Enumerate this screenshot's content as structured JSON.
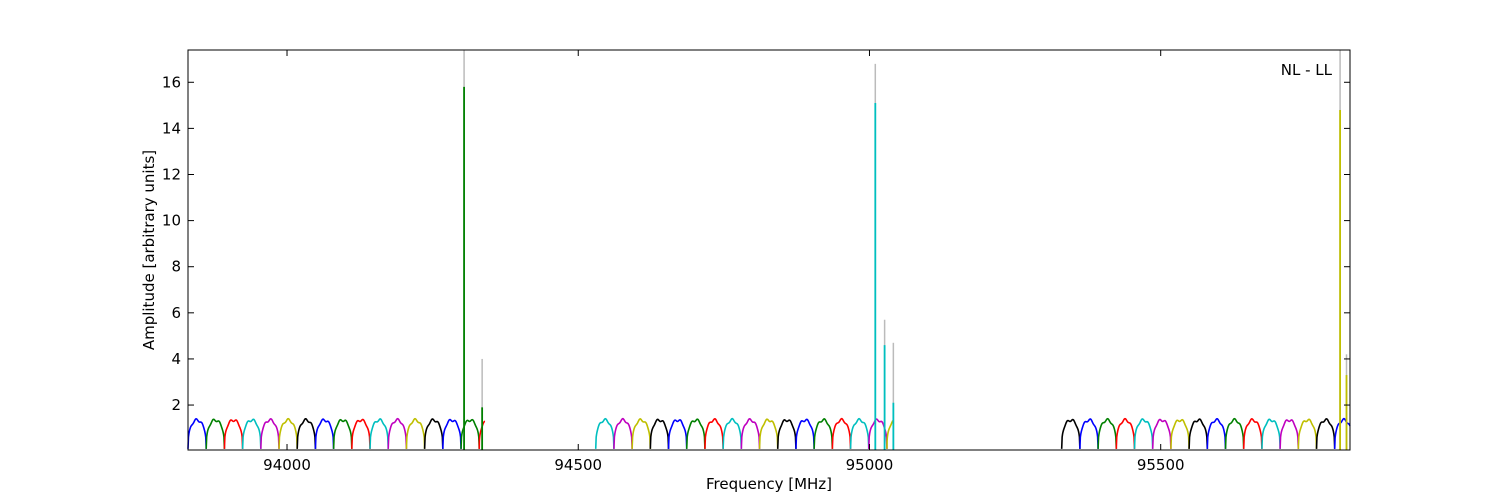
{
  "chart_data": {
    "type": "line",
    "title": "",
    "xlabel": "Frequency [MHz]",
    "ylabel": "Amplitude [arbitrary units]",
    "annotation": "NL - LL",
    "annotation_position": "top-right",
    "xlim": [
      93830,
      95825
    ],
    "ylim": [
      0.05,
      17.4
    ],
    "xticks": [
      94000,
      94500,
      95000,
      95500
    ],
    "yticks": [
      2,
      4,
      6,
      8,
      10,
      12,
      14,
      16
    ],
    "grid": false,
    "legend": "none",
    "colors": [
      "#0000ff",
      "#008000",
      "#ff0000",
      "#00bfbf",
      "#bf00bf",
      "#bfbf00",
      "#000000"
    ],
    "spike_color": "#bbbbbb",
    "baseline": {
      "subband_width_mhz": 31.25,
      "peak": 1.35,
      "edge_min": 0.1,
      "spans": [
        [
          93830,
          94340
        ],
        [
          94530,
          95040
        ],
        [
          95330,
          95825
        ]
      ]
    },
    "spikes": [
      {
        "x": 94304,
        "gray_peak": 17.4,
        "line_peak": 15.8,
        "color": "#008000"
      },
      {
        "x": 94335,
        "gray_peak": 4.0,
        "line_peak": 1.9,
        "color": "#008000"
      },
      {
        "x": 95010,
        "gray_peak": 16.8,
        "line_peak": 15.1,
        "color": "#00bfbf"
      },
      {
        "x": 95026,
        "gray_peak": 5.7,
        "line_peak": 4.6,
        "color": "#00bfbf"
      },
      {
        "x": 95041,
        "gray_peak": 4.7,
        "line_peak": 2.1,
        "color": "#00bfbf"
      },
      {
        "x": 95808,
        "gray_peak": 17.4,
        "line_peak": 14.8,
        "color": "#bfbf00"
      },
      {
        "x": 95819,
        "gray_peak": 4.2,
        "line_peak": 3.3,
        "color": "#bfbf00"
      }
    ]
  }
}
